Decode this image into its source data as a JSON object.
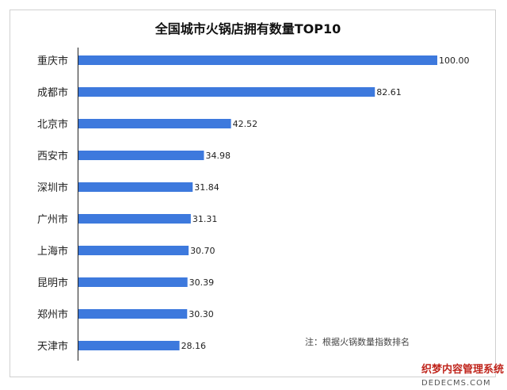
{
  "chart_data": {
    "type": "bar",
    "orientation": "horizontal",
    "title": "全国城市火锅店拥有数量TOP10",
    "categories": [
      "重庆市",
      "成都市",
      "北京市",
      "西安市",
      "深圳市",
      "广州市",
      "上海市",
      "昆明市",
      "郑州市",
      "天津市"
    ],
    "values": [
      100.0,
      82.61,
      42.52,
      34.98,
      31.84,
      31.31,
      30.7,
      30.39,
      30.3,
      28.16
    ],
    "value_labels": [
      "100.00",
      "82.61",
      "42.52",
      "34.98",
      "31.84",
      "31.31",
      "30.70",
      "30.39",
      "30.30",
      "28.16"
    ],
    "xlim": [
      0,
      100
    ],
    "grid": false,
    "legend": "none",
    "annotation": "注：根据火锅数量指数排名",
    "bar_color": "#3d79dd"
  },
  "watermark": {
    "line1": "织梦内容管理系统",
    "line2": "DEDECMS.COM"
  }
}
